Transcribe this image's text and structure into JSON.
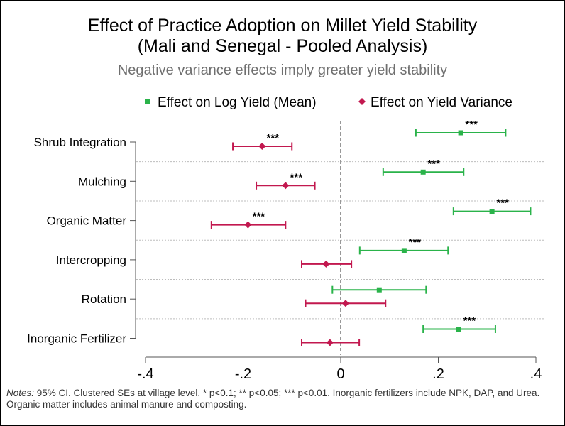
{
  "title_line1": "Effect of Practice Adoption on Millet Yield Stability",
  "title_line2": "(Mali and Senegal - Pooled Analysis)",
  "subtitle": "Negative variance effects imply greater yield stability",
  "notes_label": "Notes:",
  "notes_text": " 95% CI. Clustered SEs at village level. * p<0.1; ** p<0.05; *** p<0.01. Inorganic fertilizers include NPK, DAP, and Urea. Organic matter includes animal manure and composting.",
  "colors": {
    "mean": "#2ab34a",
    "variance": "#c2184f"
  },
  "chart_data": {
    "type": "scatter",
    "subtype": "coefficient-plot",
    "xlim": [
      -0.4,
      0.4
    ],
    "x_ticks": [
      -0.4,
      -0.2,
      0,
      0.2,
      0.4
    ],
    "x_tick_labels": [
      "-.4",
      "-.2",
      "0",
      ".2",
      ".4"
    ],
    "reference_line": 0,
    "legend_position": "top",
    "categories": [
      "Shrub Integration",
      "Mulching",
      "Organic Matter",
      "Intercropping",
      "Rotation",
      "Inorganic Fertilizer"
    ],
    "series": [
      {
        "name": "Effect on Log Yield (Mean)",
        "marker": "square",
        "color": "#2ab34a",
        "points": [
          {
            "estimate": 0.246,
            "ci": [
              0.154,
              0.338
            ],
            "sig": "***"
          },
          {
            "estimate": 0.169,
            "ci": [
              0.087,
              0.252
            ],
            "sig": "***"
          },
          {
            "estimate": 0.31,
            "ci": [
              0.231,
              0.389
            ],
            "sig": "***"
          },
          {
            "estimate": 0.13,
            "ci": [
              0.039,
              0.22
            ],
            "sig": "***"
          },
          {
            "estimate": 0.079,
            "ci": [
              -0.017,
              0.175
            ],
            "sig": ""
          },
          {
            "estimate": 0.242,
            "ci": [
              0.169,
              0.317
            ],
            "sig": "***"
          }
        ]
      },
      {
        "name": "Effect on Yield Variance",
        "marker": "diamond",
        "color": "#c2184f",
        "points": [
          {
            "estimate": -0.161,
            "ci": [
              -0.221,
              -0.1
            ],
            "sig": "***"
          },
          {
            "estimate": -0.113,
            "ci": [
              -0.173,
              -0.053
            ],
            "sig": "***"
          },
          {
            "estimate": -0.19,
            "ci": [
              -0.265,
              -0.113
            ],
            "sig": "***"
          },
          {
            "estimate": -0.03,
            "ci": [
              -0.08,
              0.022
            ],
            "sig": ""
          },
          {
            "estimate": 0.01,
            "ci": [
              -0.072,
              0.092
            ],
            "sig": ""
          },
          {
            "estimate": -0.022,
            "ci": [
              -0.08,
              0.038
            ],
            "sig": ""
          }
        ]
      }
    ]
  }
}
